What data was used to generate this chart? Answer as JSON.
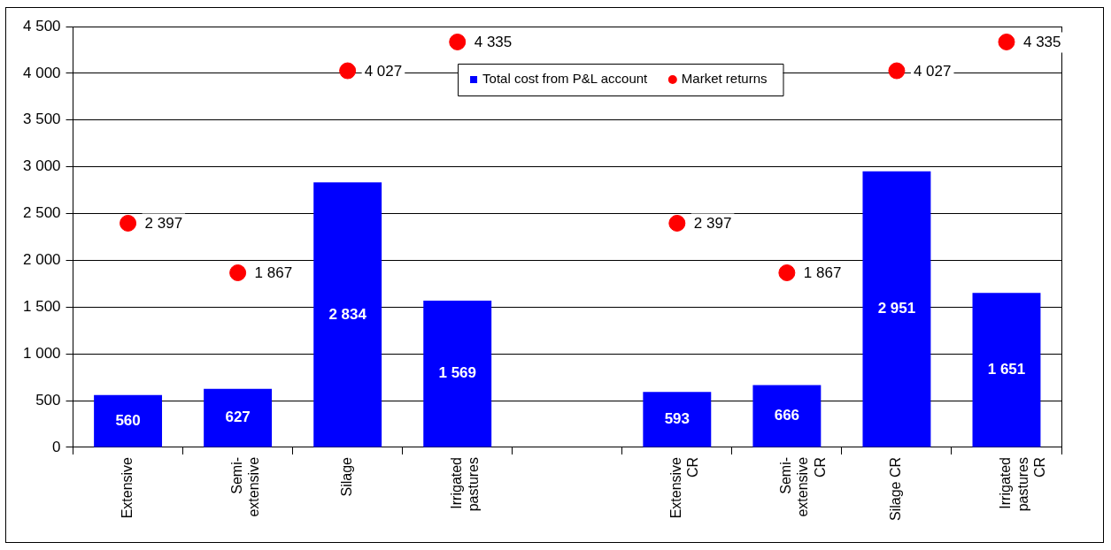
{
  "chart_data": {
    "type": "bar",
    "categories": [
      "Extensive",
      "Semi-extensive",
      "Silage",
      "Irrigated pastures",
      null,
      "Extensive CR",
      "Semi-extensive CR",
      "Silage CR",
      "Irrigated pastures CR"
    ],
    "series": [
      {
        "name": "Total cost from P&L account",
        "color": "#0000ff",
        "values": [
          560,
          627,
          2834,
          1569,
          null,
          593,
          666,
          2951,
          1651
        ],
        "value_labels": [
          "560",
          "627",
          "2 834",
          "1 569",
          null,
          "593",
          "666",
          "2 951",
          "1 651"
        ]
      },
      {
        "name": "Market returns",
        "type": "scatter",
        "color": "#ff0000",
        "values": [
          2397,
          1867,
          4027,
          4335,
          null,
          2397,
          1867,
          4027,
          4335
        ],
        "value_labels": [
          "2 397",
          "1 867",
          "4 027",
          "4 335",
          null,
          "2 397",
          "1 867",
          "4 027",
          "4 335"
        ]
      }
    ],
    "ylim": [
      0,
      4500
    ],
    "yticks": [
      0,
      500,
      {
        "value": 1000,
        "label": "1 000"
      },
      {
        "value": 1500,
        "label": "1 500"
      },
      {
        "value": 2000,
        "label": "2 000"
      },
      {
        "value": 2500,
        "label": "2 500"
      },
      {
        "value": 3000,
        "label": "3 000"
      },
      {
        "value": 3500,
        "label": "3 500"
      },
      {
        "value": 4000,
        "label": "4 000"
      },
      {
        "value": 4500,
        "label": "4 500"
      }
    ],
    "grid": "y",
    "legend": "top",
    "marker": "circle"
  }
}
